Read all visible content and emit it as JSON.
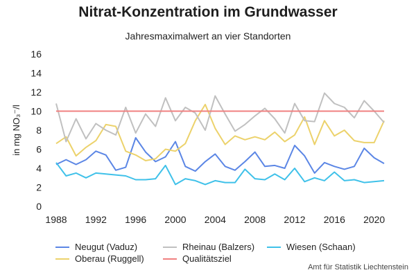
{
  "header": {
    "title": "Nitrat-Konzentration im Grundwasser",
    "subtitle": "Jahresmaximalwert an vier Standorten",
    "source": "Amt für Statistik Liechtenstein"
  },
  "chart_data": {
    "type": "line",
    "title": "Nitrat-Konzentration im Grundwasser",
    "subtitle": "Jahresmaximalwert an vier Standorten",
    "xlabel": "",
    "ylabel": "in mg NO₃⁻/l",
    "xlim": [
      1988,
      2021
    ],
    "ylim": [
      0,
      16
    ],
    "xticks": [
      1988,
      1992,
      1996,
      2000,
      2004,
      2008,
      2012,
      2016,
      2020
    ],
    "yticks": [
      0,
      2,
      4,
      6,
      8,
      10,
      12,
      14,
      16
    ],
    "grid": false,
    "legend_position": "bottom",
    "x": [
      1988,
      1989,
      1990,
      1991,
      1992,
      1993,
      1994,
      1995,
      1996,
      1997,
      1998,
      1999,
      2000,
      2001,
      2002,
      2003,
      2004,
      2005,
      2006,
      2007,
      2008,
      2009,
      2010,
      2011,
      2012,
      2013,
      2014,
      2015,
      2016,
      2017,
      2018,
      2019,
      2020,
      2021
    ],
    "series": [
      {
        "name": "Neugut (Vaduz)",
        "color": "#5b86e5",
        "values": [
          4.4,
          4.9,
          4.4,
          4.9,
          5.8,
          5.4,
          3.8,
          4.1,
          7.2,
          5.7,
          4.7,
          5.2,
          6.8,
          4.2,
          3.7,
          4.7,
          5.5,
          4.2,
          3.8,
          4.7,
          5.7,
          4.2,
          4.3,
          4.0,
          6.4,
          5.3,
          3.5,
          4.6,
          4.2,
          3.9,
          4.2,
          6.1,
          5.1,
          4.5
        ]
      },
      {
        "name": "Oberau (Ruggell)",
        "color": "#ecd26b",
        "values": [
          6.6,
          7.3,
          5.3,
          6.2,
          6.9,
          8.6,
          8.4,
          5.8,
          5.4,
          4.8,
          5.0,
          6.0,
          5.8,
          6.6,
          9.0,
          10.7,
          8.2,
          6.5,
          7.4,
          7.0,
          7.3,
          7.0,
          7.8,
          6.8,
          7.5,
          9.4,
          6.5,
          9.0,
          7.4,
          8.0,
          6.9,
          6.7,
          6.7,
          9.0
        ]
      },
      {
        "name": "Rheinau (Balzers)",
        "color": "#c0c0c0",
        "values": [
          10.8,
          6.8,
          9.2,
          7.1,
          8.7,
          8.0,
          7.5,
          10.4,
          7.7,
          9.7,
          8.4,
          11.4,
          9.0,
          10.4,
          9.8,
          8.0,
          11.6,
          9.7,
          7.9,
          8.6,
          9.5,
          10.3,
          9.2,
          7.7,
          10.8,
          9.0,
          8.9,
          11.9,
          10.8,
          10.4,
          9.3,
          11.1,
          10.0,
          8.8
        ]
      },
      {
        "name": "Qualitätsziel",
        "color": "#f08080",
        "values": [
          10,
          10,
          10,
          10,
          10,
          10,
          10,
          10,
          10,
          10,
          10,
          10,
          10,
          10,
          10,
          10,
          10,
          10,
          10,
          10,
          10,
          10,
          10,
          10,
          10,
          10,
          10,
          10,
          10,
          10,
          10,
          10,
          10,
          10
        ]
      },
      {
        "name": "Wiesen (Schaan)",
        "color": "#3fc1e9",
        "values": [
          4.6,
          3.2,
          3.5,
          3.0,
          3.5,
          3.4,
          3.3,
          3.2,
          2.8,
          2.8,
          2.9,
          4.3,
          2.3,
          2.9,
          2.7,
          2.3,
          2.7,
          2.5,
          2.5,
          3.9,
          2.9,
          2.8,
          3.4,
          2.8,
          4.0,
          2.6,
          3.0,
          2.7,
          3.6,
          2.7,
          2.8,
          2.5,
          2.6,
          2.7
        ]
      }
    ]
  },
  "legend": [
    {
      "label": "Neugut (Vaduz)",
      "color": "#5b86e5"
    },
    {
      "label": "Rheinau (Balzers)",
      "color": "#c0c0c0"
    },
    {
      "label": "Wiesen (Schaan)",
      "color": "#3fc1e9"
    },
    {
      "label": "Oberau (Ruggell)",
      "color": "#ecd26b"
    },
    {
      "label": "Qualitätsziel",
      "color": "#f08080"
    }
  ]
}
